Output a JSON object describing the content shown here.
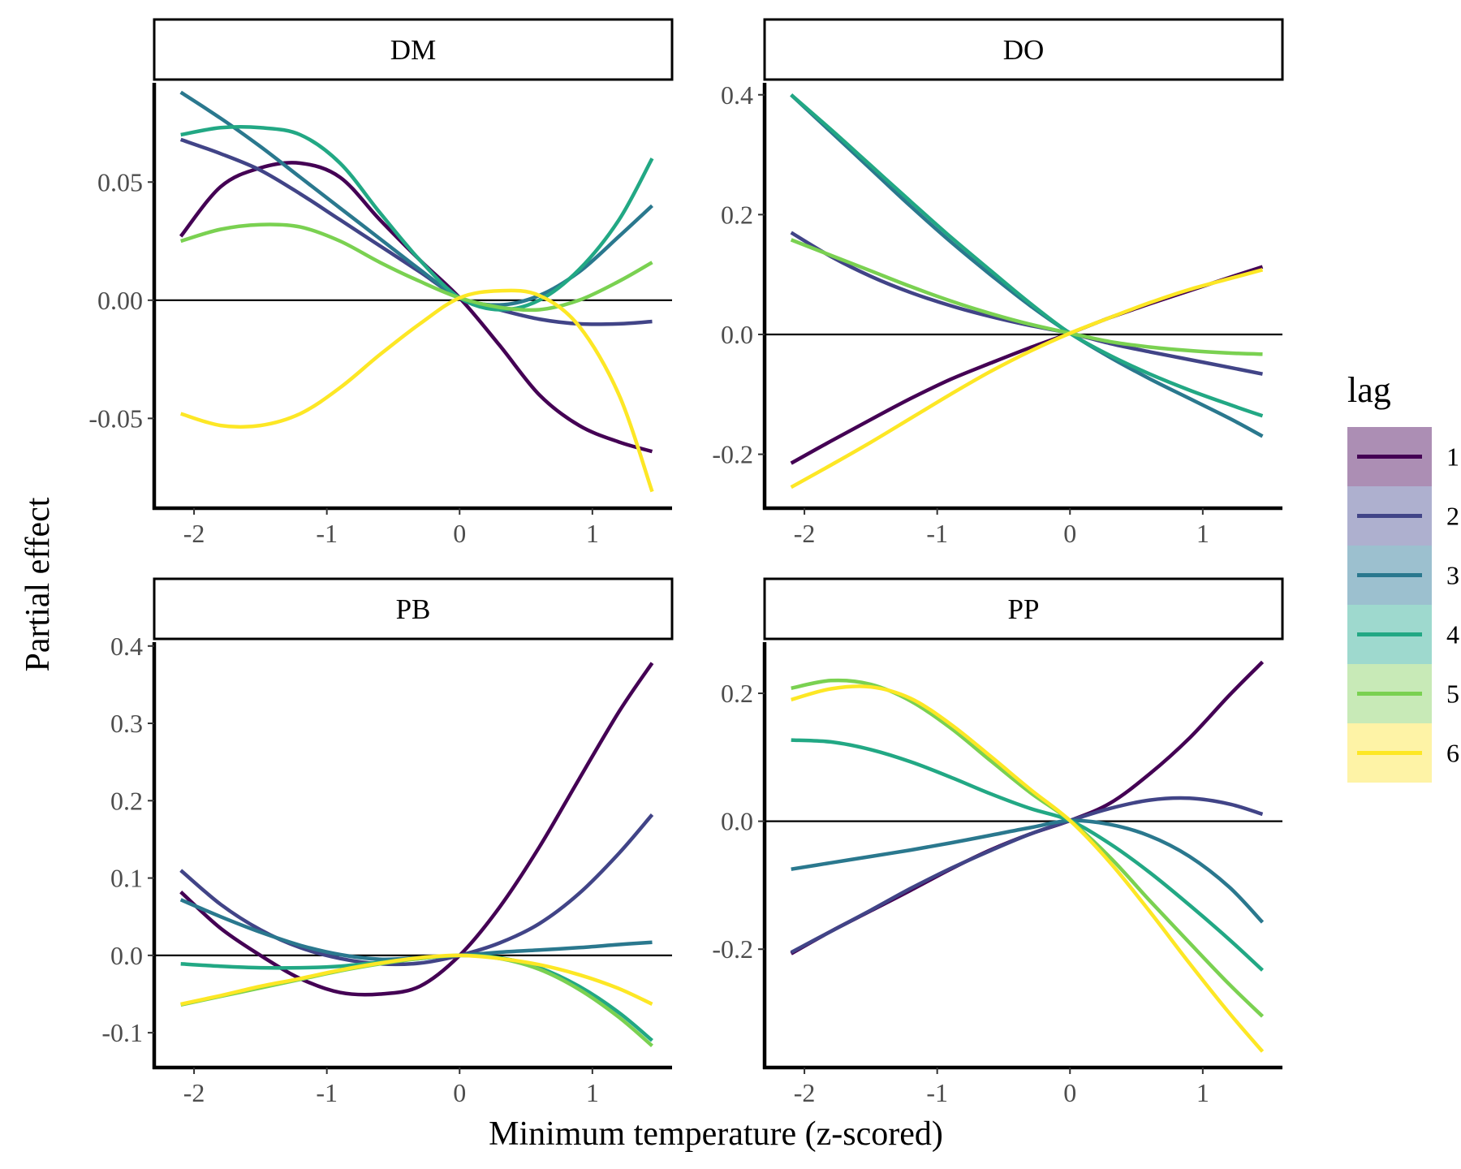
{
  "chart_data": {
    "type": "line",
    "xlabel": "Minimum temperature (z-scored)",
    "ylabel": "Partial effect",
    "xlim": [
      -2.3,
      1.6
    ],
    "xticks": [
      -2,
      -1,
      0,
      1
    ],
    "xtick_labels": [
      "-2",
      "-1",
      "0",
      "1"
    ],
    "x": [
      -2.1,
      -1.8,
      -1.5,
      -1.2,
      -0.9,
      -0.6,
      -0.3,
      0,
      0.3,
      0.6,
      0.9,
      1.2,
      1.45
    ],
    "reference_line": 0,
    "grid": false,
    "legend": {
      "title": "lag",
      "position": "right",
      "entries": [
        "1",
        "2",
        "3",
        "4",
        "5",
        "6"
      ],
      "colors": [
        "#440154",
        "#414487",
        "#2A788E",
        "#22A884",
        "#7AD151",
        "#FDE725"
      ],
      "band_colors": [
        "#ac8eb4",
        "#aeb0cf",
        "#9cc0cf",
        "#9ed9ce",
        "#c8eab7",
        "#fef3a6"
      ]
    },
    "panels": [
      {
        "title": "DM",
        "ylim": [
          -0.088,
          0.092
        ],
        "yticks": [
          -0.05,
          0,
          0.05
        ],
        "ytick_labels": [
          "-0.05",
          "0.00",
          "0.05"
        ],
        "series": [
          {
            "name": "1",
            "values": [
              0.027,
              0.048,
              0.056,
              0.058,
              0.052,
              0.034,
              0.017,
              0.001,
              -0.019,
              -0.04,
              -0.053,
              -0.06,
              -0.064
            ]
          },
          {
            "name": "2",
            "values": [
              0.068,
              0.062,
              0.055,
              0.045,
              0.034,
              0.023,
              0.012,
              0.001,
              -0.004,
              -0.008,
              -0.01,
              -0.01,
              -0.009
            ]
          },
          {
            "name": "3",
            "values": [
              0.088,
              0.077,
              0.065,
              0.052,
              0.039,
              0.026,
              0.013,
              0.001,
              -0.002,
              0.002,
              0.012,
              0.027,
              0.04
            ]
          },
          {
            "name": "4",
            "values": [
              0.07,
              0.073,
              0.073,
              0.07,
              0.058,
              0.037,
              0.017,
              0.001,
              -0.004,
              0.0,
              0.013,
              0.034,
              0.06
            ]
          },
          {
            "name": "5",
            "values": [
              0.025,
              0.03,
              0.032,
              0.031,
              0.025,
              0.016,
              0.008,
              0.001,
              -0.003,
              -0.004,
              0.0,
              0.008,
              0.016
            ]
          },
          {
            "name": "6",
            "values": [
              -0.048,
              -0.053,
              -0.053,
              -0.048,
              -0.037,
              -0.023,
              -0.01,
              0.001,
              0.004,
              0.002,
              -0.011,
              -0.04,
              -0.081
            ]
          }
        ]
      },
      {
        "title": "DO",
        "ylim": [
          -0.29,
          0.42
        ],
        "yticks": [
          -0.2,
          0,
          0.2,
          0.4
        ],
        "ytick_labels": [
          "-0.2",
          "0.0",
          "0.2",
          "0.4"
        ],
        "series": [
          {
            "name": "1",
            "values": [
              -0.215,
              -0.178,
              -0.142,
              -0.107,
              -0.075,
              -0.048,
              -0.022,
              0.002,
              0.028,
              0.051,
              0.073,
              0.095,
              0.113
            ]
          },
          {
            "name": "2",
            "values": [
              0.17,
              0.13,
              0.097,
              0.07,
              0.048,
              0.03,
              0.015,
              0.002,
              -0.015,
              -0.029,
              -0.042,
              -0.055,
              -0.066
            ]
          },
          {
            "name": "3",
            "values": [
              0.4,
              0.338,
              0.276,
              0.214,
              0.155,
              0.1,
              0.048,
              0.002,
              -0.038,
              -0.074,
              -0.107,
              -0.14,
              -0.17
            ]
          },
          {
            "name": "4",
            "values": [
              0.4,
              0.342,
              0.282,
              0.222,
              0.163,
              0.107,
              0.052,
              0.002,
              -0.035,
              -0.066,
              -0.093,
              -0.117,
              -0.136
            ]
          },
          {
            "name": "5",
            "values": [
              0.158,
              0.132,
              0.106,
              0.08,
              0.056,
              0.035,
              0.017,
              0.002,
              -0.012,
              -0.021,
              -0.027,
              -0.031,
              -0.033
            ]
          },
          {
            "name": "6",
            "values": [
              -0.255,
              -0.218,
              -0.18,
              -0.14,
              -0.1,
              -0.062,
              -0.028,
              0.002,
              0.028,
              0.053,
              0.075,
              0.093,
              0.108
            ]
          }
        ]
      },
      {
        "title": "PB",
        "ylim": [
          -0.145,
          0.405
        ],
        "yticks": [
          -0.1,
          0,
          0.1,
          0.2,
          0.3,
          0.4
        ],
        "ytick_labels": [
          "-0.1",
          "0.0",
          "0.1",
          "0.2",
          "0.3",
          "0.4"
        ],
        "series": [
          {
            "name": "1",
            "values": [
              0.082,
              0.035,
              0.0,
              -0.03,
              -0.048,
              -0.05,
              -0.04,
              0.0,
              0.062,
              0.14,
              0.228,
              0.315,
              0.378
            ]
          },
          {
            "name": "2",
            "values": [
              0.11,
              0.066,
              0.033,
              0.01,
              -0.004,
              -0.011,
              -0.01,
              0.0,
              0.016,
              0.041,
              0.08,
              0.132,
              0.182
            ]
          },
          {
            "name": "3",
            "values": [
              0.072,
              0.05,
              0.03,
              0.013,
              0.001,
              -0.005,
              -0.003,
              0.0,
              0.004,
              0.007,
              0.01,
              0.014,
              0.017
            ]
          },
          {
            "name": "4",
            "values": [
              -0.011,
              -0.014,
              -0.016,
              -0.016,
              -0.014,
              -0.009,
              -0.004,
              0.0,
              -0.003,
              -0.016,
              -0.04,
              -0.074,
              -0.11
            ]
          },
          {
            "name": "5",
            "values": [
              -0.064,
              -0.053,
              -0.042,
              -0.031,
              -0.02,
              -0.011,
              -0.004,
              0.0,
              -0.004,
              -0.018,
              -0.044,
              -0.08,
              -0.117
            ]
          },
          {
            "name": "6",
            "values": [
              -0.063,
              -0.052,
              -0.04,
              -0.03,
              -0.019,
              -0.01,
              -0.003,
              0.0,
              -0.004,
              -0.012,
              -0.025,
              -0.043,
              -0.063
            ]
          }
        ]
      },
      {
        "title": "PP",
        "ylim": [
          -0.385,
          0.28
        ],
        "yticks": [
          -0.2,
          0,
          0.2
        ],
        "ytick_labels": [
          "-0.2",
          "0.0",
          "0.2"
        ],
        "series": [
          {
            "name": "1",
            "values": [
              -0.207,
              -0.172,
              -0.14,
              -0.108,
              -0.075,
              -0.045,
              -0.02,
              0.001,
              0.028,
              0.074,
              0.13,
              0.197,
              0.249
            ]
          },
          {
            "name": "2",
            "values": [
              -0.205,
              -0.172,
              -0.139,
              -0.105,
              -0.074,
              -0.046,
              -0.02,
              0.001,
              0.02,
              0.033,
              0.036,
              0.027,
              0.011
            ]
          },
          {
            "name": "3",
            "values": [
              -0.075,
              -0.065,
              -0.055,
              -0.045,
              -0.034,
              -0.022,
              -0.01,
              0.001,
              -0.005,
              -0.023,
              -0.055,
              -0.103,
              -0.158
            ]
          },
          {
            "name": "4",
            "values": [
              0.127,
              0.124,
              0.112,
              0.093,
              0.069,
              0.043,
              0.02,
              0.001,
              -0.035,
              -0.08,
              -0.131,
              -0.185,
              -0.233
            ]
          },
          {
            "name": "5",
            "values": [
              0.208,
              0.22,
              0.214,
              0.188,
              0.146,
              0.095,
              0.045,
              0.001,
              -0.056,
              -0.124,
              -0.19,
              -0.255,
              -0.305
            ]
          },
          {
            "name": "6",
            "values": [
              0.19,
              0.207,
              0.21,
              0.192,
              0.152,
              0.102,
              0.05,
              0.001,
              -0.064,
              -0.141,
              -0.222,
              -0.3,
              -0.36
            ]
          }
        ]
      }
    ]
  }
}
